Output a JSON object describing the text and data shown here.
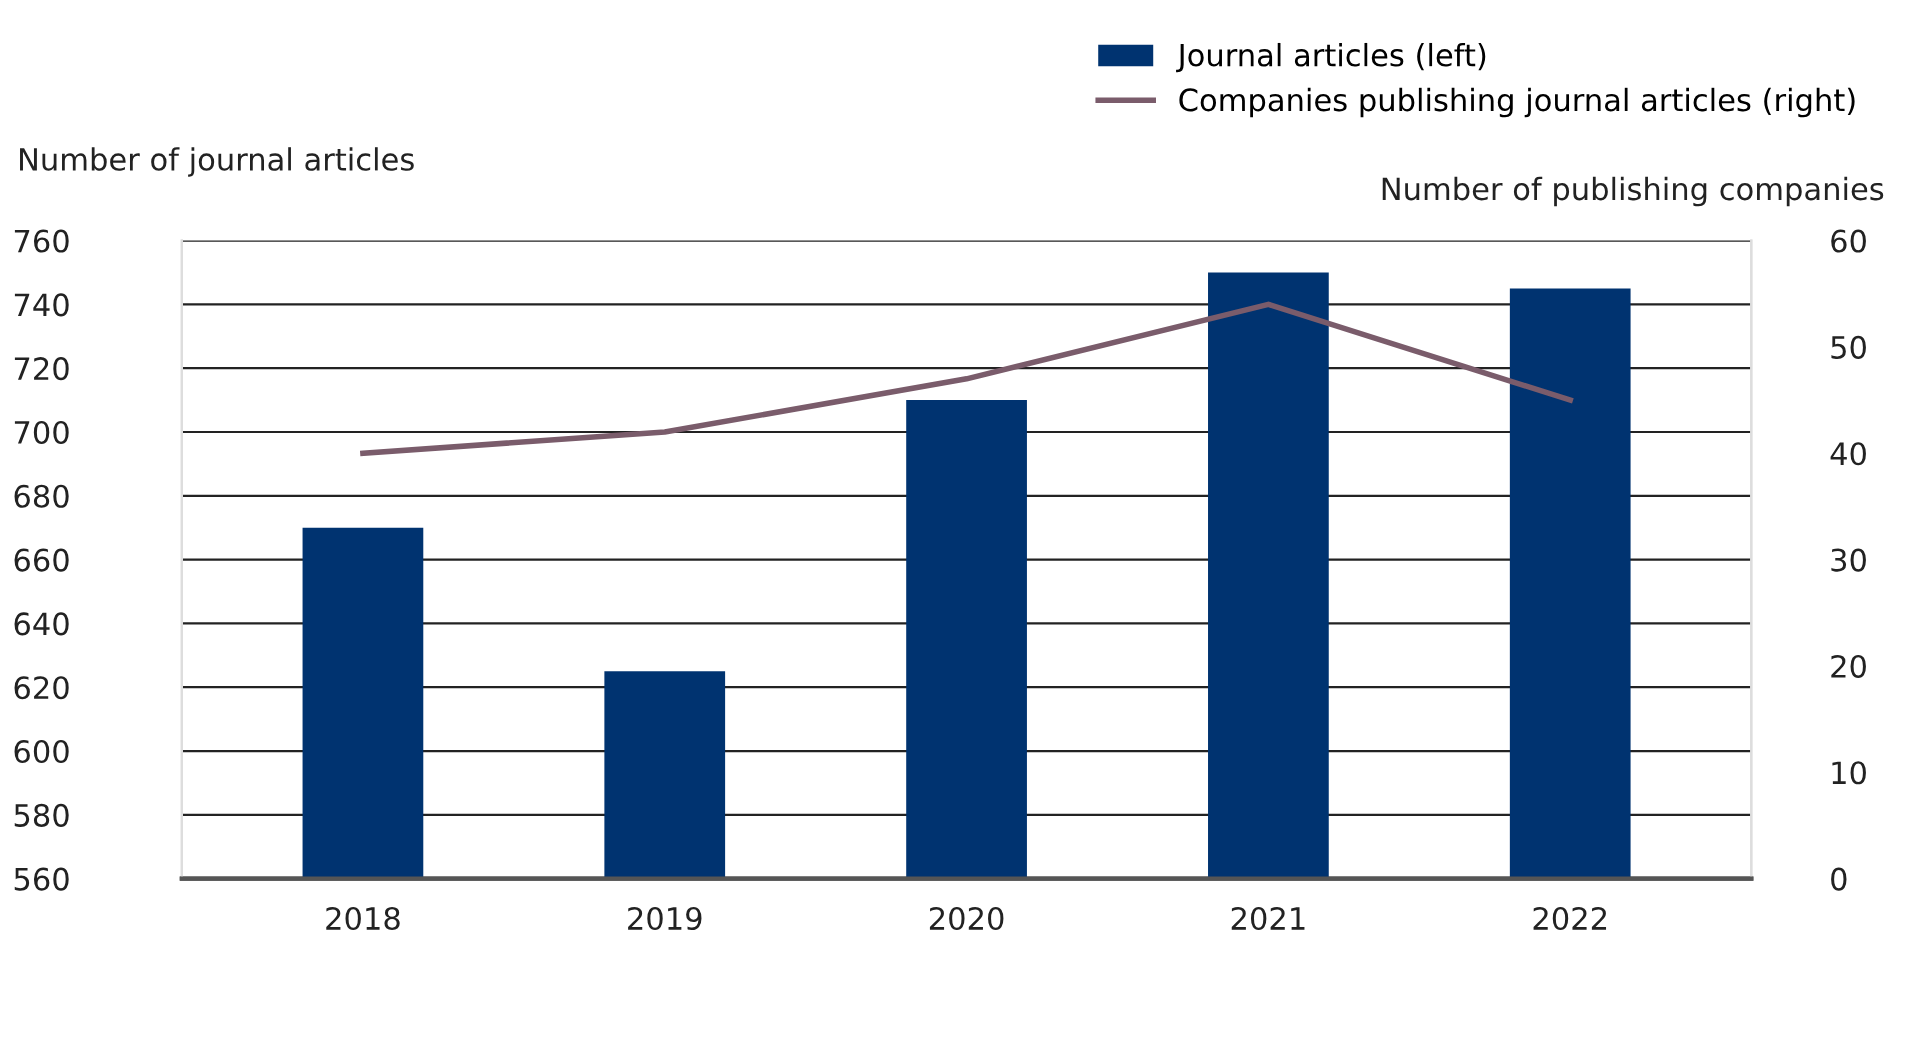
{
  "chart_data": {
    "type": "bar",
    "categories": [
      "2018",
      "2019",
      "2020",
      "2021",
      "2022"
    ],
    "ylabel": "Number of journal articles",
    "y2label": "Number of publishing companies",
    "series": [
      {
        "name": "Journal articles (left)",
        "color": "#003370",
        "values": [
          670,
          625,
          710,
          750,
          745
        ]
      },
      {
        "name": "Companies publishing journal articles (right)",
        "type": "line",
        "axis": "y2",
        "color": "#7a5c6b",
        "values": [
          40,
          42,
          47,
          54,
          45
        ]
      }
    ],
    "ylim": [
      560,
      760
    ],
    "yticks": [
      560,
      580,
      600,
      620,
      640,
      660,
      680,
      700,
      720,
      740,
      760
    ],
    "y2lim": [
      0,
      60
    ],
    "y2ticks": [
      0,
      10,
      20,
      30,
      40,
      50,
      60
    ],
    "grid": "y",
    "legend": "top right",
    "marker": "none",
    "line_style": "solid"
  }
}
